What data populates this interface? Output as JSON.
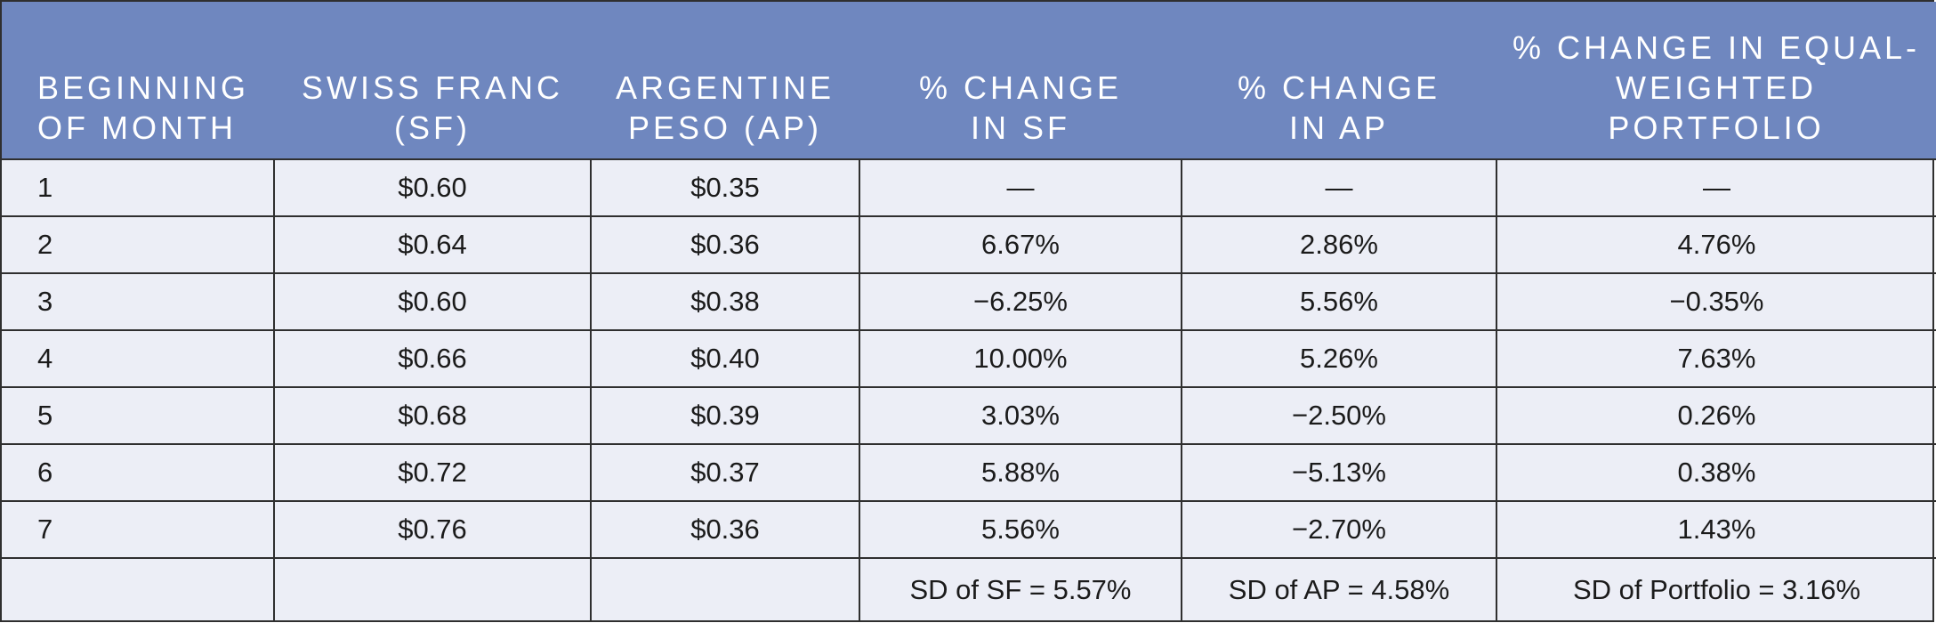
{
  "table": {
    "headers": [
      "BEGINNING OF MONTH",
      "SWISS FRANC (SF)",
      "ARGENTINE PESO (AP)",
      "% CHANGE IN SF",
      "% CHANGE IN AP",
      "% CHANGE IN EQUAL-WEIGHTED PORTFOLIO"
    ],
    "header_lines": [
      [
        "BEGINNING",
        "OF MONTH"
      ],
      [
        "SWISS FRANC",
        "(SF)"
      ],
      [
        "ARGENTINE",
        "PESO (AP)"
      ],
      [
        "% CHANGE",
        "IN SF"
      ],
      [
        "% CHANGE",
        "IN AP"
      ],
      [
        "% CHANGE IN EQUAL-",
        "WEIGHTED",
        "PORTFOLIO"
      ]
    ],
    "rows": [
      {
        "month": "1",
        "sf": "$0.60",
        "ap": "$0.35",
        "pct_sf": "—",
        "pct_ap": "—",
        "pct_portfolio": "—"
      },
      {
        "month": "2",
        "sf": "$0.64",
        "ap": "$0.36",
        "pct_sf": "6.67%",
        "pct_ap": "2.86%",
        "pct_portfolio": "4.76%"
      },
      {
        "month": "3",
        "sf": "$0.60",
        "ap": "$0.38",
        "pct_sf": "−6.25%",
        "pct_ap": "5.56%",
        "pct_portfolio": "−0.35%"
      },
      {
        "month": "4",
        "sf": "$0.66",
        "ap": "$0.40",
        "pct_sf": "10.00%",
        "pct_ap": "5.26%",
        "pct_portfolio": "7.63%"
      },
      {
        "month": "5",
        "sf": "$0.68",
        "ap": "$0.39",
        "pct_sf": "3.03%",
        "pct_ap": "−2.50%",
        "pct_portfolio": "0.26%"
      },
      {
        "month": "6",
        "sf": "$0.72",
        "ap": "$0.37",
        "pct_sf": "5.88%",
        "pct_ap": "−5.13%",
        "pct_portfolio": "0.38%"
      },
      {
        "month": "7",
        "sf": "$0.76",
        "ap": "$0.36",
        "pct_sf": "5.56%",
        "pct_ap": "−2.70%",
        "pct_portfolio": "1.43%"
      }
    ],
    "sd_row": {
      "sd_sf": "SD of SF = 5.57%",
      "sd_ap": "SD of AP = 4.58%",
      "sd_portfolio": "SD of Portfolio = 3.16%"
    },
    "colors": {
      "header_bg": "#6f87bf",
      "body_bg": "#eceef6",
      "border": "#2f2f2f",
      "header_text": "#ffffff"
    }
  }
}
